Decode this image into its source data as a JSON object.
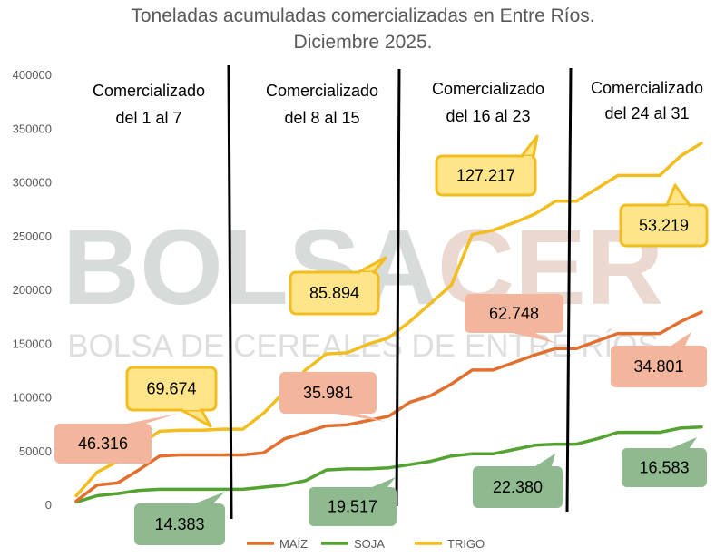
{
  "chart_data": {
    "type": "line",
    "title": "Toneladas acumuladas comercializadas en Entre Ríos.",
    "subtitle": "Diciembre 2025.",
    "xlabel": "",
    "ylabel": "",
    "ylim": [
      0,
      400000
    ],
    "y_ticks": [
      "0",
      "50000",
      "100000",
      "150000",
      "200000",
      "250000",
      "300000",
      "350000",
      "400000"
    ],
    "x": [
      1,
      2,
      3,
      4,
      5,
      6,
      7,
      8,
      9,
      10,
      11,
      12,
      13,
      14,
      15,
      16,
      17,
      18,
      19,
      20,
      21,
      22,
      23,
      24,
      25,
      26,
      27,
      28,
      29,
      30,
      31
    ],
    "series": [
      {
        "name": "MAÍZ",
        "color": "#E26F2E",
        "values": [
          3000,
          18000,
          20000,
          32000,
          45000,
          46000,
          46000,
          46000,
          46000,
          48000,
          61000,
          67000,
          73000,
          74000,
          78000,
          82000,
          95000,
          101000,
          112000,
          125000,
          125000,
          132000,
          139000,
          145000,
          145000,
          152000,
          159000,
          159000,
          159000,
          170000,
          179000
        ]
      },
      {
        "name": "SOJA",
        "color": "#54A331",
        "values": [
          2000,
          8000,
          10000,
          13000,
          14000,
          14000,
          14000,
          14000,
          14000,
          16000,
          18000,
          22000,
          32000,
          33000,
          33000,
          34000,
          37000,
          40000,
          45000,
          47000,
          47000,
          51000,
          55000,
          56000,
          56000,
          61000,
          67000,
          67000,
          67000,
          71000,
          72000
        ]
      },
      {
        "name": "TRIGO",
        "color": "#F2BD1F",
        "values": [
          8000,
          30000,
          40000,
          55000,
          68000,
          69000,
          69000,
          70000,
          70000,
          85000,
          105000,
          125000,
          140000,
          141000,
          149000,
          155000,
          170000,
          187000,
          204000,
          251000,
          255000,
          262000,
          270000,
          282000,
          282000,
          294000,
          306000,
          306000,
          306000,
          324000,
          336000
        ]
      }
    ],
    "period_labels": [
      {
        "line1": "Comercializado",
        "line2": "del 1 al 7"
      },
      {
        "line1": "Comercializado",
        "line2": "del 8 al 15"
      },
      {
        "line1": "Comercializado",
        "line2": "del 16 al 23"
      },
      {
        "line1": "Comercializado",
        "line2": "del 24 al 31"
      }
    ],
    "period_boundaries": [
      7.5,
      15.5,
      23.5
    ],
    "annotations": [
      {
        "series": "TRIGO",
        "period": 1,
        "text": "69.674"
      },
      {
        "series": "MAÍZ",
        "period": 1,
        "text": "46.316"
      },
      {
        "series": "SOJA",
        "period": 1,
        "text": "14.383"
      },
      {
        "series": "TRIGO",
        "period": 2,
        "text": "85.894"
      },
      {
        "series": "MAÍZ",
        "period": 2,
        "text": "35.981"
      },
      {
        "series": "SOJA",
        "period": 2,
        "text": "19.517"
      },
      {
        "series": "TRIGO",
        "period": 3,
        "text": "127.217"
      },
      {
        "series": "MAÍZ",
        "period": 3,
        "text": "62.748"
      },
      {
        "series": "SOJA",
        "period": 3,
        "text": "22.380"
      },
      {
        "series": "TRIGO",
        "period": 4,
        "text": "53.219"
      },
      {
        "series": "MAÍZ",
        "period": 4,
        "text": "34.801"
      },
      {
        "series": "SOJA",
        "period": 4,
        "text": "16.583"
      }
    ],
    "legend": [
      "MAÍZ",
      "SOJA",
      "TRIGO"
    ],
    "legend_position": "bottom",
    "grid": false
  },
  "watermark": {
    "logo_text": "BOLSACER",
    "name": "BOLSA DE CEREALES DE ENTRE RÍOS"
  },
  "colors": {
    "maiz_line": "#E26F2E",
    "soja_line": "#54A331",
    "trigo_line": "#F2BD1F",
    "trigo_callout_fill": "#FFE58A",
    "trigo_callout_border": "#F2BD1F",
    "maiz_callout_fill": "#F3B59B",
    "soja_callout_fill": "#8FB98E"
  }
}
